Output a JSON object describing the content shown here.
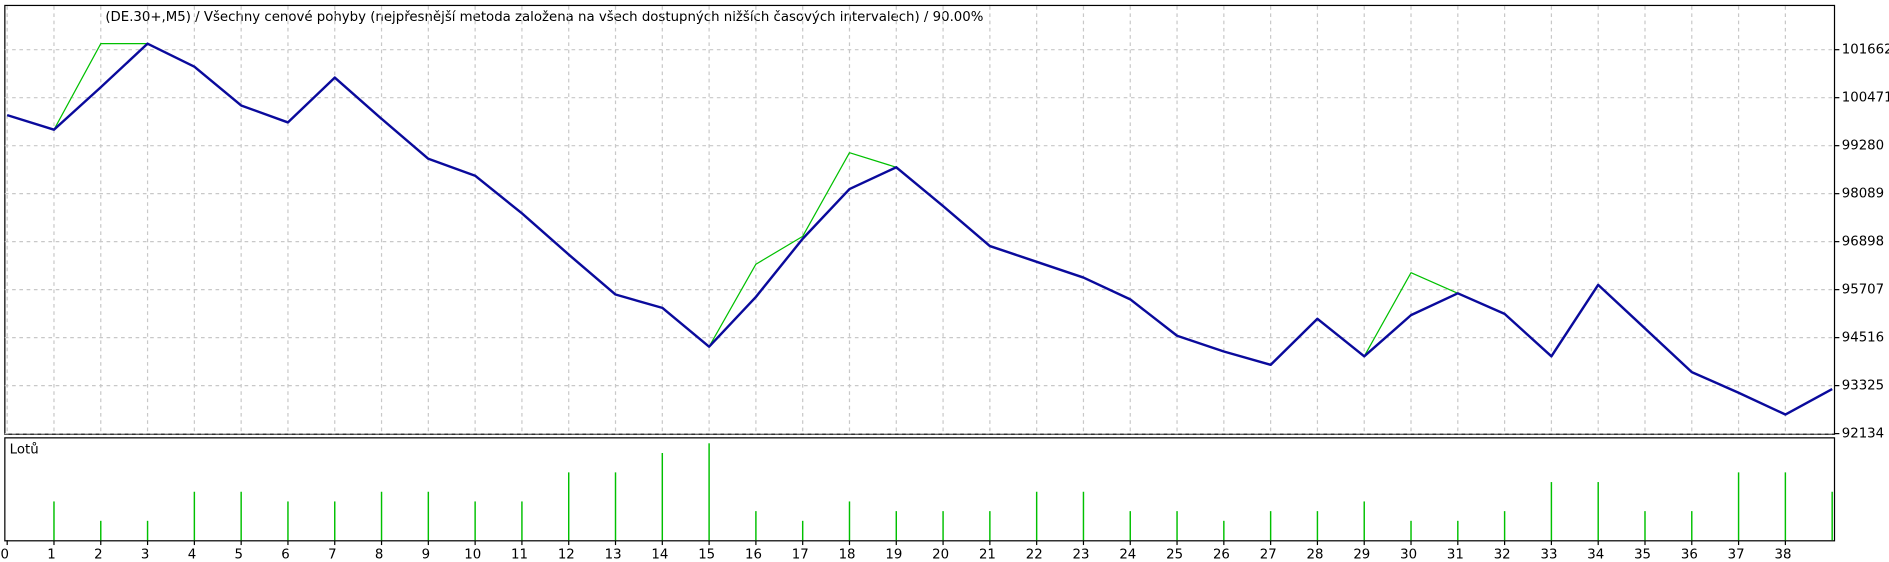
{
  "chart_data": [
    {
      "type": "line",
      "title": "(DE.30+,M5) / Všechny cenové pohyby (nejpřesnější metoda založena na všech dostupných nižších časových intervalech) / 90.00%",
      "x": [
        0,
        1,
        2,
        3,
        4,
        5,
        6,
        7,
        8,
        9,
        10,
        11,
        12,
        13,
        14,
        15,
        16,
        17,
        18,
        19,
        20,
        21,
        22,
        23,
        24,
        25,
        26,
        27,
        28,
        29,
        30,
        31,
        32,
        33,
        34,
        35,
        36,
        37,
        38,
        39
      ],
      "series": [
        {
          "color": "#00c000",
          "values": [
            100038,
            99677,
            101812,
            101812,
            101241,
            100278,
            99857,
            100970,
            99947,
            98955,
            98534,
            97601,
            96578,
            95586,
            95255,
            94292,
            96338,
            97030,
            99105,
            98744,
            97782,
            96789,
            96398,
            96007,
            95466,
            94563,
            94172,
            93841,
            94984,
            94052,
            96127,
            95616,
            95105,
            94052,
            95826,
            94744,
            93661,
            93149,
            92608,
            93240
          ]
        },
        {
          "color": "#0a0a9c",
          "values": [
            100038,
            99677,
            100730,
            101812,
            101241,
            100278,
            99857,
            100970,
            99947,
            98955,
            98534,
            97601,
            96578,
            95586,
            95255,
            94292,
            95526,
            96970,
            98203,
            98744,
            97782,
            96789,
            96398,
            96007,
            95466,
            94563,
            94172,
            93841,
            94984,
            94052,
            95074,
            95616,
            95105,
            94052,
            95826,
            94744,
            93661,
            93149,
            92608,
            93240
          ]
        }
      ],
      "xlim": [
        -0.05,
        39.05
      ],
      "xticks": [
        0,
        1,
        2,
        3,
        4,
        5,
        6,
        7,
        8,
        9,
        10,
        11,
        12,
        13,
        14,
        15,
        16,
        17,
        18,
        19,
        20,
        21,
        22,
        23,
        24,
        25,
        26,
        27,
        28,
        29,
        30,
        31,
        32,
        33,
        34,
        35,
        36,
        37,
        38
      ],
      "ylim": [
        92134,
        102745
      ],
      "yticks": [
        92134,
        93325,
        94516,
        95707,
        96898,
        98089,
        99280,
        100471,
        101662
      ],
      "grid": true
    },
    {
      "type": "bar",
      "title": "Lotů",
      "x": [
        1,
        2,
        3,
        4,
        5,
        6,
        7,
        8,
        9,
        10,
        11,
        12,
        13,
        14,
        15,
        16,
        17,
        18,
        19,
        20,
        21,
        22,
        23,
        24,
        25,
        26,
        27,
        28,
        29,
        30,
        31,
        32,
        33,
        34,
        35,
        36,
        37,
        38,
        39
      ],
      "values": [
        0.4,
        0.2,
        0.2,
        0.5,
        0.5,
        0.4,
        0.4,
        0.5,
        0.5,
        0.4,
        0.4,
        0.7,
        0.7,
        0.9,
        1.0,
        0.3,
        0.2,
        0.4,
        0.3,
        0.3,
        0.3,
        0.5,
        0.5,
        0.3,
        0.3,
        0.2,
        0.3,
        0.3,
        0.4,
        0.2,
        0.2,
        0.3,
        0.6,
        0.6,
        0.3,
        0.3,
        0.7,
        0.7,
        0.5
      ],
      "color": "#00c000",
      "xlim": [
        -0.05,
        39.05
      ],
      "ylim": [
        0,
        1.05
      ]
    }
  ]
}
